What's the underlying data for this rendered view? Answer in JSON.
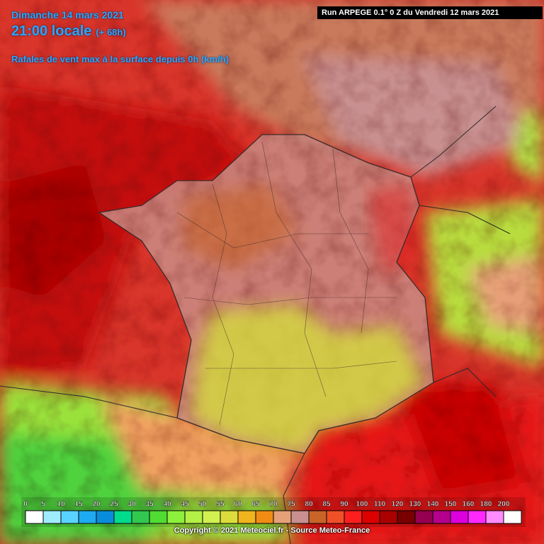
{
  "header": {
    "date": "Dimanche 14 mars 2021",
    "time": "21:00 locale",
    "lead": "(+ 68h)",
    "parameter": "Rafales de vent max à la surface depuis 0h (km/h)",
    "run": "Run ARPEGE 0.1° 0 Z du Vendredi 12 mars 2021"
  },
  "legend": {
    "labels": [
      0,
      5,
      10,
      15,
      20,
      25,
      30,
      35,
      40,
      45,
      50,
      55,
      60,
      65,
      70,
      75,
      80,
      85,
      90,
      100,
      110,
      120,
      130,
      140,
      150,
      160,
      180,
      200
    ],
    "colors": [
      "#ffffff",
      "#a0ecff",
      "#5ad2ff",
      "#1eaaf0",
      "#0a8cdc",
      "#00dc8c",
      "#32c850",
      "#50dc32",
      "#8cf03c",
      "#b4f046",
      "#d2f050",
      "#dcdc3c",
      "#f0b41e",
      "#f08c14",
      "#e6a078",
      "#c89090",
      "#c86428",
      "#f05028",
      "#ff1e1e",
      "#dc0000",
      "#aa0000",
      "#780000",
      "#960050",
      "#b4008c",
      "#dc00dc",
      "#ff28ff",
      "#ff8cff",
      "#ffffff"
    ]
  },
  "footer": {
    "copyright": "Copyright © 2021 Meteociel.fr - Source Meteo-France"
  }
}
